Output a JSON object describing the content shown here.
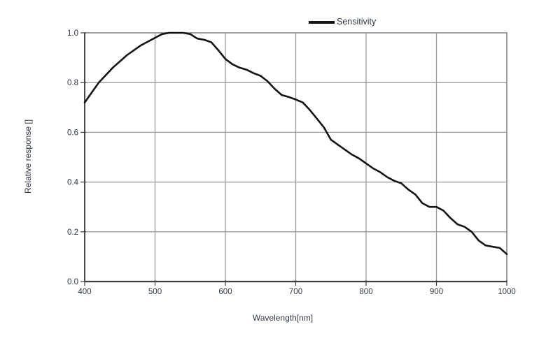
{
  "colors": {
    "background": "#ffffff",
    "grid": "#9b9b9b",
    "frame": "#8a8a8a",
    "axis": "#3f3f3f",
    "text": "#323a45",
    "curve": "#141414"
  },
  "chart_data": {
    "type": "line",
    "title": "",
    "xlabel": "Wavelength[nm]",
    "ylabel": "Relative response []",
    "xlim": [
      400,
      1000
    ],
    "ylim": [
      0.0,
      1.0
    ],
    "grid": true,
    "legend_position": "top-center",
    "xticks": [
      400,
      500,
      600,
      700,
      800,
      900,
      1000
    ],
    "yticks": [
      0.0,
      0.2,
      0.4,
      0.6,
      0.8,
      1.0
    ],
    "ytick_labels": [
      "0.0",
      "0.2",
      "0.4",
      "0.6",
      "0.8",
      "1.0"
    ],
    "x": [
      400,
      410,
      420,
      430,
      440,
      450,
      460,
      470,
      480,
      490,
      500,
      510,
      520,
      530,
      540,
      550,
      560,
      570,
      580,
      590,
      600,
      610,
      620,
      630,
      640,
      650,
      660,
      670,
      680,
      690,
      700,
      710,
      720,
      730,
      740,
      750,
      760,
      770,
      780,
      790,
      800,
      810,
      820,
      830,
      840,
      850,
      860,
      870,
      880,
      890,
      900,
      910,
      920,
      930,
      940,
      950,
      960,
      970,
      980,
      990,
      1000
    ],
    "series": [
      {
        "name": "Sensitivity",
        "color": "#141414",
        "values": [
          0.72,
          0.76,
          0.8,
          0.83,
          0.86,
          0.885,
          0.91,
          0.93,
          0.95,
          0.965,
          0.98,
          0.995,
          1.0,
          1.0,
          1.0,
          0.995,
          0.977,
          0.972,
          0.962,
          0.93,
          0.895,
          0.874,
          0.86,
          0.852,
          0.838,
          0.827,
          0.805,
          0.775,
          0.75,
          0.742,
          0.732,
          0.72,
          0.69,
          0.655,
          0.62,
          0.57,
          0.55,
          0.53,
          0.51,
          0.495,
          0.475,
          0.455,
          0.44,
          0.42,
          0.405,
          0.395,
          0.37,
          0.35,
          0.315,
          0.3,
          0.3,
          0.285,
          0.255,
          0.23,
          0.22,
          0.2,
          0.165,
          0.145,
          0.14,
          0.135,
          0.11
        ]
      }
    ]
  }
}
